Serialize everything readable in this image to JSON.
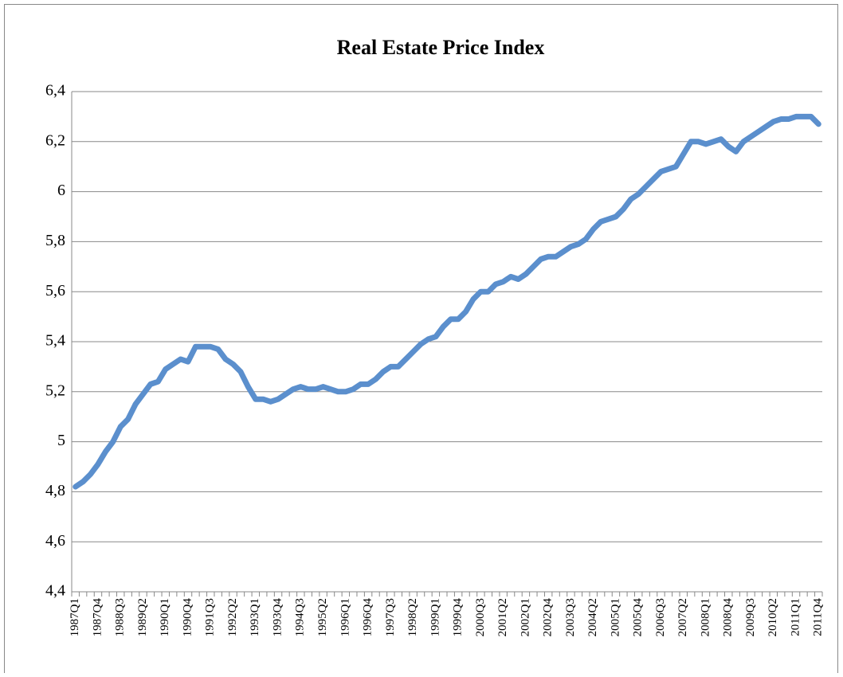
{
  "chart_data": {
    "type": "line",
    "title": "Real Estate Price Index",
    "categories": [
      "1987Q1",
      null,
      null,
      "1987Q4",
      null,
      null,
      "1988Q3",
      null,
      null,
      "1989Q2",
      null,
      null,
      "1990Q1",
      null,
      null,
      "1990Q4",
      null,
      null,
      "1991Q3",
      null,
      null,
      "1992Q2",
      null,
      null,
      "1993Q1",
      null,
      null,
      "1993Q4",
      null,
      null,
      "1994Q3",
      null,
      null,
      "1995Q2",
      null,
      null,
      "1996Q1",
      null,
      null,
      "1996Q4",
      null,
      null,
      "1997Q3",
      null,
      null,
      "1998Q2",
      null,
      null,
      "1999Q1",
      null,
      null,
      "1999Q4",
      null,
      null,
      "2000Q3",
      null,
      null,
      "2001Q2",
      null,
      null,
      "2002Q1",
      null,
      null,
      "2002Q4",
      null,
      null,
      "2003Q3",
      null,
      null,
      "2004Q2",
      null,
      null,
      "2005Q1",
      null,
      null,
      "2005Q4",
      null,
      null,
      "2006Q3",
      null,
      null,
      "2007Q2",
      null,
      null,
      "2008Q1",
      null,
      null,
      "2008Q4",
      null,
      null,
      "2009Q3",
      null,
      null,
      "2010Q2",
      null,
      null,
      "2011Q1",
      null,
      null,
      "2011Q4"
    ],
    "values": [
      4.82,
      4.84,
      4.87,
      4.91,
      4.96,
      5.0,
      5.06,
      5.09,
      5.15,
      5.19,
      5.23,
      5.24,
      5.29,
      5.31,
      5.33,
      5.32,
      5.38,
      5.38,
      5.38,
      5.37,
      5.33,
      5.31,
      5.28,
      5.22,
      5.17,
      5.17,
      5.16,
      5.17,
      5.19,
      5.21,
      5.22,
      5.21,
      5.21,
      5.22,
      5.21,
      5.2,
      5.2,
      5.21,
      5.23,
      5.23,
      5.25,
      5.28,
      5.3,
      5.3,
      5.33,
      5.36,
      5.39,
      5.41,
      5.42,
      5.46,
      5.49,
      5.49,
      5.52,
      5.57,
      5.6,
      5.6,
      5.63,
      5.64,
      5.66,
      5.65,
      5.67,
      5.7,
      5.73,
      5.74,
      5.74,
      5.76,
      5.78,
      5.79,
      5.81,
      5.85,
      5.88,
      5.89,
      5.9,
      5.93,
      5.97,
      5.99,
      6.02,
      6.05,
      6.08,
      6.09,
      6.1,
      6.15,
      6.2,
      6.2,
      6.19,
      6.2,
      6.21,
      6.18,
      6.16,
      6.2,
      6.22,
      6.24,
      6.26,
      6.28,
      6.29,
      6.29,
      6.3,
      6.3,
      6.3,
      6.27
    ],
    "color": "#5b8fcd",
    "ylim": [
      4.4,
      6.4
    ],
    "yticks": [
      {
        "value": 4.4,
        "label": "4,4"
      },
      {
        "value": 4.6,
        "label": "4,6"
      },
      {
        "value": 4.8,
        "label": "4,8"
      },
      5,
      {
        "value": 5.2,
        "label": "5,2"
      },
      {
        "value": 5.4,
        "label": "5,4"
      },
      {
        "value": 5.6,
        "label": "5,6"
      },
      {
        "value": 5.8,
        "label": "5,8"
      },
      6,
      {
        "value": 6.2,
        "label": "6,2"
      },
      {
        "value": 6.4,
        "label": "6,4"
      }
    ],
    "grid": true
  }
}
